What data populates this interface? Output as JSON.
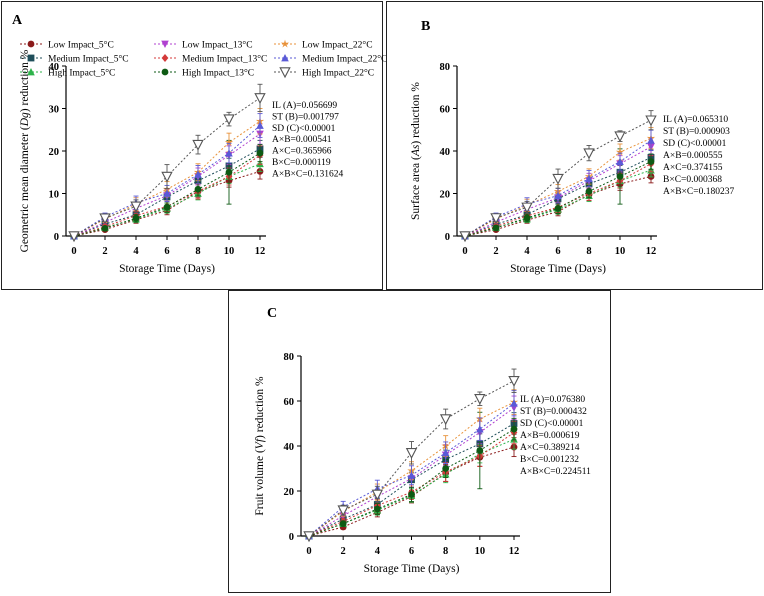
{
  "figure": {
    "legend_entries": [
      {
        "label": "Low Impact_5°C",
        "color": "#8b1a1a",
        "marker": "circle"
      },
      {
        "label": "Medium Impact_5°C",
        "color": "#1f4e5a",
        "marker": "square"
      },
      {
        "label": "High Impact_5°C",
        "color": "#2db34a",
        "marker": "triangle-up"
      },
      {
        "label": "Low Impact_13°C",
        "color": "#b040d0",
        "marker": "triangle-down"
      },
      {
        "label": "Medium Impact_13°C",
        "color": "#d43a3a",
        "marker": "diamond"
      },
      {
        "label": "High Impact_13°C",
        "color": "#0e5a14",
        "marker": "circle"
      },
      {
        "label": "Low Impact_22°C",
        "color": "#e8923a",
        "marker": "star"
      },
      {
        "label": "Medium Impact_22°C",
        "color": "#5a5ad6",
        "marker": "triangle-up"
      },
      {
        "label": "High Impact_22°C",
        "color": "#555555",
        "marker": "triangle-down-open"
      }
    ]
  },
  "chart_data": [
    {
      "panel": "A",
      "type": "line",
      "title": "A",
      "xlabel": "Storage Time (Days)",
      "ylabel_prefix": "Geometric mean diameter (",
      "ylabel_var": "Dg",
      "ylabel_suffix": ") reduction %",
      "x": [
        0,
        2,
        4,
        6,
        8,
        10,
        12
      ],
      "xticks": [
        "0",
        "2",
        "4",
        "6",
        "8",
        "10",
        "12"
      ],
      "yticks": [
        "0",
        "10",
        "20",
        "30",
        "40"
      ],
      "ylim": [
        0,
        40
      ],
      "stats": [
        "IL (A)=0.056699",
        "ST (B)=0.001797",
        "SD (C)<0.00001",
        "A×B=0.000541",
        "A×C=0.365966",
        "B×C=0.000119",
        "A×B×C=0.131624"
      ],
      "series": [
        {
          "name": "Low Impact_5°C",
          "values": [
            0,
            1.5,
            3.8,
            6.0,
            10.5,
            13.0,
            15.2
          ],
          "errors": [
            0,
            0.4,
            0.8,
            1.0,
            1.5,
            1.5,
            1.8
          ]
        },
        {
          "name": "Medium Impact_5°C",
          "values": [
            0,
            2.8,
            5.0,
            9.2,
            13.0,
            16.5,
            20.5
          ],
          "errors": [
            0,
            0.6,
            0.9,
            1.2,
            1.6,
            1.8,
            2.0
          ]
        },
        {
          "name": "High Impact_5°C",
          "values": [
            0,
            2.0,
            4.0,
            6.5,
            10.0,
            14.0,
            17.0
          ],
          "errors": [
            0,
            0.5,
            0.8,
            1.1,
            1.5,
            1.6,
            1.8
          ]
        },
        {
          "name": "Low Impact_13°C",
          "values": [
            0,
            3.2,
            6.5,
            9.5,
            14.0,
            19.0,
            24.0
          ],
          "errors": [
            0,
            0.7,
            1.2,
            1.4,
            2.0,
            2.2,
            2.4
          ]
        },
        {
          "name": "Medium Impact_13°C",
          "values": [
            0,
            2.2,
            4.8,
            7.0,
            10.5,
            14.0,
            19.0
          ],
          "errors": [
            0,
            0.5,
            1.0,
            1.2,
            1.8,
            2.0,
            2.2
          ]
        },
        {
          "name": "High Impact_13°C",
          "values": [
            0,
            1.8,
            4.2,
            6.8,
            11.0,
            15.0,
            19.5
          ],
          "errors": [
            0,
            0.4,
            0.9,
            1.2,
            1.6,
            7.5,
            2.0
          ]
        },
        {
          "name": "Low Impact_22°C",
          "values": [
            0,
            4.0,
            7.5,
            11.0,
            15.0,
            22.0,
            27.0
          ],
          "errors": [
            0,
            0.8,
            1.5,
            1.8,
            2.0,
            2.2,
            3.0
          ]
        },
        {
          "name": "Medium Impact_22°C",
          "values": [
            0,
            4.5,
            7.8,
            10.0,
            14.5,
            19.5,
            26.0
          ],
          "errors": [
            0,
            0.9,
            1.6,
            1.9,
            2.1,
            2.3,
            2.8
          ]
        },
        {
          "name": "High Impact_22°C",
          "values": [
            0,
            4.2,
            7.0,
            14.0,
            21.5,
            27.5,
            32.5
          ],
          "errors": [
            0,
            0.8,
            1.5,
            2.8,
            2.2,
            1.6,
            3.2
          ]
        }
      ]
    },
    {
      "panel": "B",
      "type": "line",
      "title": "B",
      "xlabel": "Storage Time (Days)",
      "ylabel_prefix": "Surface area (",
      "ylabel_var": "As",
      "ylabel_suffix": ") reduction %",
      "x": [
        0,
        2,
        4,
        6,
        8,
        10,
        12
      ],
      "xticks": [
        "0",
        "2",
        "4",
        "6",
        "8",
        "10",
        "12"
      ],
      "yticks": [
        "0",
        "20",
        "40",
        "60",
        "80"
      ],
      "ylim": [
        0,
        80
      ],
      "stats": [
        "IL (A)=0.065310",
        "ST (B)=0.000903",
        "SD (C)<0.00001",
        "A×B=0.000555",
        "A×C=0.374155",
        "B×C=0.000368",
        "A×B×C=0.180237"
      ],
      "series": [
        {
          "name": "Low Impact_5°C",
          "values": [
            0,
            3.0,
            7.5,
            11.5,
            19.5,
            24.5,
            28.0
          ],
          "errors": [
            0,
            0.8,
            1.5,
            2.0,
            2.8,
            3.0,
            3.0
          ]
        },
        {
          "name": "Medium Impact_5°C",
          "values": [
            0,
            5.5,
            10.0,
            17.5,
            24.5,
            30.0,
            37.0
          ],
          "errors": [
            0,
            1.2,
            1.8,
            2.4,
            3.0,
            3.2,
            3.5
          ]
        },
        {
          "name": "High Impact_5°C",
          "values": [
            0,
            4.0,
            8.0,
            12.5,
            19.0,
            26.0,
            31.0
          ],
          "errors": [
            0,
            1.0,
            1.6,
            2.2,
            2.8,
            3.0,
            3.2
          ]
        },
        {
          "name": "Low Impact_13°C",
          "values": [
            0,
            6.5,
            12.5,
            18.0,
            26.0,
            34.0,
            42.0
          ],
          "errors": [
            0,
            1.4,
            2.4,
            2.8,
            3.5,
            3.8,
            4.0
          ]
        },
        {
          "name": "Medium Impact_13°C",
          "values": [
            0,
            4.5,
            9.5,
            13.5,
            20.0,
            26.0,
            34.0
          ],
          "errors": [
            0,
            1.0,
            2.0,
            2.4,
            3.2,
            3.5,
            3.8
          ]
        },
        {
          "name": "High Impact_13°C",
          "values": [
            0,
            3.8,
            8.5,
            13.0,
            21.0,
            28.0,
            35.0
          ],
          "errors": [
            0,
            0.8,
            1.8,
            2.4,
            3.0,
            13.0,
            3.6
          ]
        },
        {
          "name": "Low Impact_22°C",
          "values": [
            0,
            8.0,
            14.5,
            21.0,
            28.0,
            39.5,
            46.0
          ],
          "errors": [
            0,
            1.6,
            2.8,
            3.2,
            3.6,
            3.8,
            5.0
          ]
        },
        {
          "name": "Medium Impact_22°C",
          "values": [
            0,
            9.0,
            15.0,
            19.0,
            27.0,
            35.0,
            45.0
          ],
          "errors": [
            0,
            1.8,
            3.0,
            3.4,
            3.8,
            4.0,
            4.8
          ]
        },
        {
          "name": "High Impact_22°C",
          "values": [
            0,
            8.5,
            13.5,
            27.0,
            39.0,
            47.0,
            54.5
          ],
          "errors": [
            0,
            1.6,
            2.8,
            4.5,
            3.6,
            2.5,
            4.5
          ]
        }
      ]
    },
    {
      "panel": "C",
      "type": "line",
      "title": "C",
      "xlabel": "Storage Time (Days)",
      "ylabel_prefix": "Fruit volume (",
      "ylabel_var": "Vf",
      "ylabel_suffix": ") reduction %",
      "x": [
        0,
        2,
        4,
        6,
        8,
        10,
        12
      ],
      "xticks": [
        "0",
        "2",
        "4",
        "6",
        "8",
        "10",
        "12"
      ],
      "yticks": [
        "0",
        "20",
        "40",
        "60",
        "80"
      ],
      "ylim": [
        0,
        80
      ],
      "stats": [
        "IL (A)=0.076380",
        "ST (B)=0.000432",
        "SD (C)<0.00001",
        "A×B=0.000619",
        "A×C=0.389214",
        "B×C=0.001232",
        "A×B×C=0.224511"
      ],
      "series": [
        {
          "name": "Low Impact_5°C",
          "values": [
            0,
            4.0,
            10.5,
            17.5,
            28.0,
            35.0,
            39.5
          ],
          "errors": [
            0,
            1.0,
            2.0,
            2.8,
            3.8,
            4.0,
            4.2
          ]
        },
        {
          "name": "Medium Impact_5°C",
          "values": [
            0,
            7.5,
            14.0,
            25.0,
            34.0,
            41.0,
            50.0
          ],
          "errors": [
            0,
            1.6,
            2.6,
            3.4,
            4.2,
            4.4,
            4.8
          ]
        },
        {
          "name": "High Impact_5°C",
          "values": [
            0,
            5.5,
            11.5,
            18.0,
            27.5,
            36.5,
            43.0
          ],
          "errors": [
            0,
            1.2,
            2.2,
            3.0,
            3.8,
            4.0,
            4.4
          ]
        },
        {
          "name": "Low Impact_13°C",
          "values": [
            0,
            9.0,
            17.5,
            25.5,
            36.0,
            46.0,
            57.0
          ],
          "errors": [
            0,
            2.0,
            3.2,
            3.8,
            4.6,
            5.0,
            5.2
          ]
        },
        {
          "name": "Medium Impact_13°C",
          "values": [
            0,
            6.5,
            13.5,
            19.5,
            28.5,
            35.5,
            46.0
          ],
          "errors": [
            0,
            1.4,
            2.6,
            3.2,
            4.2,
            4.6,
            5.0
          ]
        },
        {
          "name": "High Impact_13°C",
          "values": [
            0,
            5.5,
            12.0,
            18.5,
            30.0,
            38.0,
            47.5
          ],
          "errors": [
            0,
            1.2,
            2.4,
            3.2,
            4.0,
            17.0,
            4.8
          ]
        },
        {
          "name": "Low Impact_22°C",
          "values": [
            0,
            11.0,
            19.5,
            29.0,
            40.0,
            52.0,
            59.5
          ],
          "errors": [
            0,
            2.2,
            3.6,
            4.0,
            4.6,
            4.8,
            5.5
          ]
        },
        {
          "name": "Medium Impact_22°C",
          "values": [
            0,
            13.0,
            21.0,
            27.0,
            37.0,
            47.5,
            59.0
          ],
          "errors": [
            0,
            2.4,
            3.8,
            4.2,
            4.8,
            5.0,
            5.6
          ]
        },
        {
          "name": "High Impact_22°C",
          "values": [
            0,
            11.5,
            18.5,
            37.0,
            52.0,
            61.0,
            69.0
          ],
          "errors": [
            0,
            2.2,
            3.6,
            5.0,
            4.4,
            3.0,
            5.2
          ]
        }
      ]
    }
  ]
}
